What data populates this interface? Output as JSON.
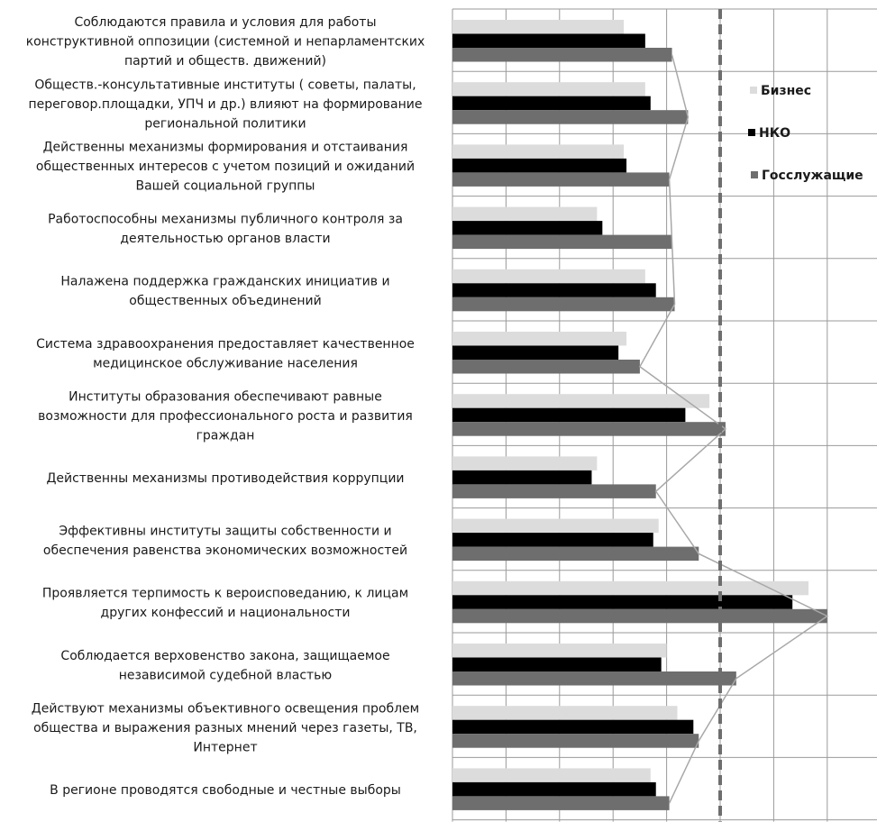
{
  "chart_data": {
    "type": "bar",
    "orientation": "horizontal",
    "categories": [
      [
        "Соблюдаются правила и условия для работы",
        "конструктивной оппозиции (системной и непарламентских",
        "партий и обществ. движений)"
      ],
      [
        "Обществ.-консультативные институты ( советы, палаты,",
        "переговор.площадки, УПЧ и др.) влияют на формирование",
        "региональной политики"
      ],
      [
        "Действенны механизмы формирования и отстаивания",
        "общественных интересов с учетом позиций и ожиданий",
        "Вашей социальной группы"
      ],
      [
        "Работоспособны механизмы публичного контроля за",
        "деятельностью органов власти"
      ],
      [
        "Налажена поддержка гражданских инициатив и",
        "общественных объединений"
      ],
      [
        "Система здравоохранения предоставляет качественное",
        "медицинское обслуживание населения"
      ],
      [
        "Институты образования обеспечивают равные",
        "возможности для профессионального роста и развития",
        "граждан"
      ],
      [
        "Действенны механизмы противодействия коррупции"
      ],
      [
        "Эффективны институты защиты собственности и",
        "обеспечения равенства экономических возможностей"
      ],
      [
        "Проявляется терпимость к вероисповеданию, к лицам",
        "других конфессий и национальности"
      ],
      [
        "Соблюдается верховенство закона, защищаемое",
        "независимой судебной властью"
      ],
      [
        "Действуют механизмы объективного освещения проблем",
        "общества и выражения разных мнений через газеты, ТВ,",
        "Интернет"
      ],
      [
        "В регионе проводятся свободные и честные выборы"
      ]
    ],
    "series": [
      {
        "name": "Бизнес",
        "color": "#dcdcdc",
        "values": [
          3.2,
          3.6,
          3.2,
          2.7,
          3.6,
          3.25,
          4.8,
          2.7,
          3.85,
          6.65,
          4.0,
          4.2,
          3.7
        ]
      },
      {
        "name": "НКО",
        "color": "#000000",
        "values": [
          3.6,
          3.7,
          3.25,
          2.8,
          3.8,
          3.1,
          4.35,
          2.6,
          3.75,
          6.35,
          3.9,
          4.5,
          3.8
        ]
      },
      {
        "name": "Госслужащие",
        "color": "#6e6e6e",
        "values": [
          4.1,
          4.4,
          4.05,
          4.1,
          4.15,
          3.5,
          5.1,
          3.8,
          4.6,
          7.0,
          5.3,
          4.6,
          4.05
        ]
      }
    ],
    "xlim": [
      0,
      8
    ],
    "reference_line": 5,
    "grid": true,
    "legend_position": "right",
    "connector_series": "Госслужащие"
  }
}
